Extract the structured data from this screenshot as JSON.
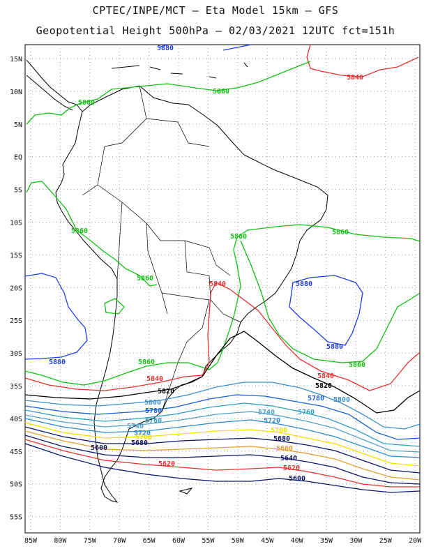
{
  "header": {
    "line1": "CPTEC/INPE/MCT –  Eta Model 15km – GFS",
    "line2": "Geopotential Height 500hPa – 02/03/2021 12UTC fct=151h"
  },
  "axes": {
    "lat_labels": [
      "15N",
      "10N",
      "5N",
      "EQ",
      "5S",
      "10S",
      "15S",
      "20S",
      "25S",
      "30S",
      "35S",
      "40S",
      "45S",
      "50S",
      "55S"
    ],
    "lon_labels": [
      "85W",
      "80W",
      "75W",
      "70W",
      "65W",
      "60W",
      "55W",
      "50W",
      "45W",
      "40W",
      "35W",
      "30W",
      "25W",
      "20W"
    ],
    "grid": "dotted"
  },
  "colors": {
    "c5880": "#1f3ee6",
    "c5860": "#11c011",
    "c5840": "#e53030",
    "c5820": "#000000",
    "c5800": "#3a8fc8",
    "c5780": "#1860d8",
    "c5760": "#2f9dbf",
    "c5740": "#52a0c8",
    "c5720": "#2a8bd0",
    "c5700": "#f0e000",
    "c5680": "#0d1466",
    "c5660": "#e0a030",
    "coast": "#000000"
  },
  "contour_labels": [
    {
      "id": "l5880a",
      "text": "5880",
      "color": "c5880"
    },
    {
      "id": "l5840a",
      "text": "5840",
      "color": "c5840"
    },
    {
      "id": "l5860a",
      "text": "5860",
      "color": "c5860"
    },
    {
      "id": "l5860b",
      "text": "5860",
      "color": "c5860"
    },
    {
      "id": "l5860c",
      "text": "5860",
      "color": "c5860"
    },
    {
      "id": "l5860d",
      "text": "5860",
      "color": "c5860"
    },
    {
      "id": "l5860e",
      "text": "5860",
      "color": "c5860"
    },
    {
      "id": "l5860f",
      "text": "5860",
      "color": "c5860"
    },
    {
      "id": "l5880b",
      "text": "5880",
      "color": "c5880"
    },
    {
      "id": "l5840b",
      "text": "5840",
      "color": "c5840"
    },
    {
      "id": "l5880c",
      "text": "5880",
      "color": "c5880"
    },
    {
      "id": "l5880d",
      "text": "5880",
      "color": "c5880"
    },
    {
      "id": "l5860g",
      "text": "5860",
      "color": "c5860"
    },
    {
      "id": "l5860h",
      "text": "5860",
      "color": "c5860"
    },
    {
      "id": "l5840c",
      "text": "5840",
      "color": "c5840"
    },
    {
      "id": "l5840d",
      "text": "5840",
      "color": "c5840"
    },
    {
      "id": "l5820a",
      "text": "5820",
      "color": "c5820"
    },
    {
      "id": "l5820b",
      "text": "5820",
      "color": "c5820"
    },
    {
      "id": "l5800a",
      "text": "5800",
      "color": "c5800"
    },
    {
      "id": "l5800b",
      "text": "5800",
      "color": "c5800"
    },
    {
      "id": "l5780a",
      "text": "5780",
      "color": "c5780"
    },
    {
      "id": "l5780b",
      "text": "5780",
      "color": "c5780"
    },
    {
      "id": "l5760a",
      "text": "5760",
      "color": "c5760"
    },
    {
      "id": "l5760b",
      "text": "5760",
      "color": "c5760"
    },
    {
      "id": "l5740a",
      "text": "5740",
      "color": "c5740"
    },
    {
      "id": "l5740b",
      "text": "5740",
      "color": "c5740"
    },
    {
      "id": "l5720a",
      "text": "5720",
      "color": "c5720"
    },
    {
      "id": "l5720b",
      "text": "5720",
      "color": "c5720"
    },
    {
      "id": "l5700a",
      "text": "5700",
      "color": "c5700"
    },
    {
      "id": "l5700b",
      "text": "5700",
      "color": "c5700"
    },
    {
      "id": "l5680a",
      "text": "5680",
      "color": "c5680"
    },
    {
      "id": "l5680b",
      "text": "5680",
      "color": "c5680"
    },
    {
      "id": "l5660a",
      "text": "5660",
      "color": "c5660"
    },
    {
      "id": "l5640a",
      "text": "5640",
      "color": "c5680"
    },
    {
      "id": "l5620a",
      "text": "5620",
      "color": "c5840"
    },
    {
      "id": "l5620b",
      "text": "5620",
      "color": "c5840"
    },
    {
      "id": "l5600a",
      "text": "5600",
      "color": "c5680"
    },
    {
      "id": "l5600b",
      "text": "5600",
      "color": "c5680"
    }
  ]
}
